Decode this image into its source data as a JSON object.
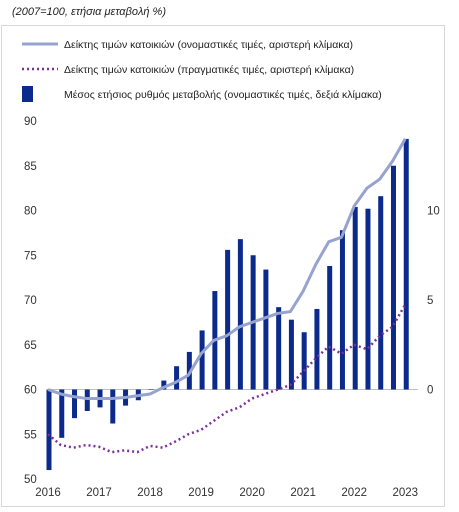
{
  "subtitle": "(2007=100, ετήσια μεταβολή %)",
  "legend": [
    {
      "label": "Δείκτης τιμών κατοικιών (ονομαστικές τιμές, αριστερή κλίμακα)",
      "color": "#97a3cf",
      "style": "solid-line"
    },
    {
      "label": "Δείκτης τιμών κατοικιών (πραγματικές τιμές, αριστερή κλίμακα)",
      "color": "#7d2f9c",
      "style": "dotted-line"
    },
    {
      "label": "Μέσος ετήσιος ρυθμός μεταβολής (ονομαστικές τιμές, δεξιά κλίμακα)",
      "color": "#0b2a8c",
      "style": "bar"
    }
  ],
  "chart_data": {
    "type": "bar+line",
    "x_ticks": [
      "2016",
      "2017",
      "2018",
      "2019",
      "2020",
      "2021",
      "2022",
      "2023"
    ],
    "left_axis": {
      "ylim": [
        50,
        90
      ],
      "ticks": [
        50,
        55,
        60,
        65,
        70,
        75,
        80,
        85,
        90
      ]
    },
    "right_axis": {
      "ylim": [
        -5,
        15
      ],
      "ticks": [
        0,
        5,
        10
      ]
    },
    "x_range": [
      2016.0,
      2023.25
    ],
    "x": [
      2016.0,
      2016.25,
      2016.5,
      2016.75,
      2017.0,
      2017.25,
      2017.5,
      2017.75,
      2018.0,
      2018.25,
      2018.5,
      2018.75,
      2019.0,
      2019.25,
      2019.5,
      2019.75,
      2020.0,
      2020.25,
      2020.5,
      2020.75,
      2021.0,
      2021.25,
      2021.5,
      2021.75,
      2022.0,
      2022.25,
      2022.5,
      2022.75,
      2023.0
    ],
    "series": [
      {
        "name": "Δείκτης τιμών κατοικιών (ονομαστικές τιμές, αριστερή κλίμακα)",
        "axis": "left",
        "values": [
          60.0,
          59.5,
          59.2,
          59.0,
          59.0,
          59.0,
          59.1,
          59.3,
          59.5,
          60.2,
          60.8,
          61.6,
          64.0,
          65.5,
          66.0,
          67.0,
          67.5,
          68.0,
          68.5,
          68.7,
          71.0,
          74.0,
          76.5,
          77.0,
          80.5,
          82.5,
          83.5,
          85.5,
          88.0
        ]
      },
      {
        "name": "Δείκτης τιμών κατοικιών (πραγματικές τιμές, αριστερή κλίμακα)",
        "axis": "left",
        "values": [
          55.0,
          53.8,
          53.5,
          53.8,
          53.6,
          53.0,
          53.2,
          53.0,
          53.7,
          53.5,
          54.2,
          55.0,
          55.5,
          56.5,
          57.5,
          58.0,
          59.0,
          59.5,
          60.0,
          60.5,
          62.0,
          63.5,
          64.8,
          64.0,
          65.0,
          64.5,
          66.0,
          67.0,
          69.5
        ]
      },
      {
        "name": "Μέσος ετήσιος ρυθμός μεταβολής (ονομαστικές τιμές, δεξιά κλίμακα)",
        "axis": "right",
        "values": [
          -4.5,
          -2.7,
          -1.6,
          -1.2,
          -1.0,
          -1.9,
          -0.9,
          -0.6,
          0.0,
          0.5,
          1.3,
          2.1,
          3.3,
          5.5,
          7.8,
          8.4,
          7.5,
          6.7,
          4.6,
          3.9,
          3.2,
          4.5,
          6.9,
          8.9,
          10.2,
          10.1,
          10.8,
          12.5,
          14.0
        ]
      }
    ]
  }
}
